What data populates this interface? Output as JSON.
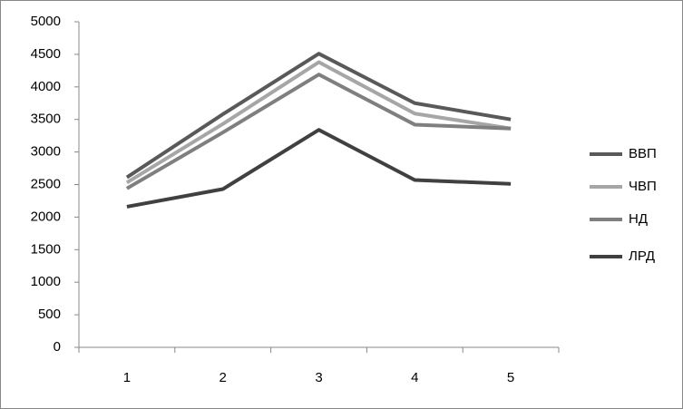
{
  "chart_data": {
    "type": "line",
    "categories": [
      "1",
      "2",
      "3",
      "4",
      "5"
    ],
    "series": [
      {
        "name": "ВВП",
        "color": "#595959",
        "values": [
          2610,
          3580,
          4510,
          3750,
          3500
        ]
      },
      {
        "name": "ЧВП",
        "color": "#a6a6a6",
        "values": [
          2530,
          3430,
          4380,
          3590,
          3360
        ]
      },
      {
        "name": "НД",
        "color": "#7f7f7f",
        "values": [
          2440,
          3300,
          4190,
          3420,
          3360
        ]
      },
      {
        "name": "ЛРД",
        "color": "#404040",
        "values": [
          2160,
          2430,
          3340,
          2570,
          2510
        ]
      }
    ],
    "ylim": [
      0,
      5000
    ],
    "yticks": [
      0,
      500,
      1000,
      1500,
      2000,
      2500,
      3000,
      3500,
      4000,
      4500,
      5000
    ],
    "grid": false,
    "legend": "right"
  }
}
